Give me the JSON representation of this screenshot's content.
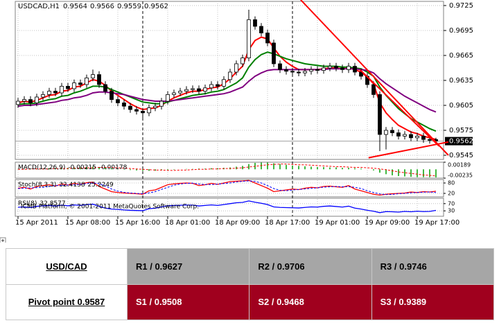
{
  "chart_data": {
    "type": "candlestick",
    "title": "USDCAD,H1",
    "ohlc": [
      [
        0.9606,
        0.9614,
        0.9602,
        0.961
      ],
      [
        0.961,
        0.9616,
        0.9606,
        0.9612
      ],
      [
        0.9612,
        0.9616,
        0.9604,
        0.9608
      ],
      [
        0.9608,
        0.9619,
        0.9604,
        0.9615
      ],
      [
        0.9615,
        0.9622,
        0.9611,
        0.9618
      ],
      [
        0.9618,
        0.9626,
        0.9614,
        0.9622
      ],
      [
        0.9622,
        0.9626,
        0.9616,
        0.962
      ],
      [
        0.962,
        0.9632,
        0.9616,
        0.9628
      ],
      [
        0.9628,
        0.9632,
        0.9621,
        0.9625
      ],
      [
        0.9625,
        0.9636,
        0.9621,
        0.9632
      ],
      [
        0.9632,
        0.9636,
        0.9626,
        0.963
      ],
      [
        0.963,
        0.9642,
        0.9626,
        0.9638
      ],
      [
        0.9638,
        0.9648,
        0.9634,
        0.9642
      ],
      [
        0.9642,
        0.9646,
        0.9626,
        0.963
      ],
      [
        0.963,
        0.9634,
        0.9618,
        0.9622
      ],
      [
        0.9622,
        0.9626,
        0.9608,
        0.9612
      ],
      [
        0.9612,
        0.9616,
        0.9604,
        0.9608
      ],
      [
        0.9608,
        0.9612,
        0.96,
        0.9604
      ],
      [
        0.9604,
        0.9608,
        0.9596,
        0.96
      ],
      [
        0.96,
        0.9604,
        0.9594,
        0.9598
      ],
      [
        0.9598,
        0.9602,
        0.959,
        0.9596
      ],
      [
        0.9596,
        0.9606,
        0.9592,
        0.9602
      ],
      [
        0.9602,
        0.9608,
        0.9598,
        0.9604
      ],
      [
        0.9604,
        0.9614,
        0.96,
        0.961
      ],
      [
        0.961,
        0.9622,
        0.9606,
        0.9618
      ],
      [
        0.9618,
        0.9624,
        0.9614,
        0.962
      ],
      [
        0.962,
        0.9626,
        0.9616,
        0.9622
      ],
      [
        0.9622,
        0.9628,
        0.9618,
        0.9624
      ],
      [
        0.9624,
        0.9629,
        0.962,
        0.9625
      ],
      [
        0.9625,
        0.9629,
        0.9618,
        0.9622
      ],
      [
        0.9622,
        0.963,
        0.9618,
        0.9626
      ],
      [
        0.9626,
        0.9634,
        0.9622,
        0.963
      ],
      [
        0.963,
        0.9634,
        0.9624,
        0.9628
      ],
      [
        0.9628,
        0.964,
        0.9624,
        0.9636
      ],
      [
        0.9636,
        0.9649,
        0.9632,
        0.9645
      ],
      [
        0.9645,
        0.9659,
        0.9641,
        0.9655
      ],
      [
        0.9655,
        0.9666,
        0.9651,
        0.9662
      ],
      [
        0.9662,
        0.972,
        0.9658,
        0.9708
      ],
      [
        0.9708,
        0.9712,
        0.9696,
        0.97
      ],
      [
        0.97,
        0.9704,
        0.9688,
        0.9692
      ],
      [
        0.9692,
        0.9696,
        0.9676,
        0.968
      ],
      [
        0.968,
        0.9684,
        0.9651,
        0.9655
      ],
      [
        0.9655,
        0.9659,
        0.9644,
        0.9648
      ],
      [
        0.9648,
        0.9652,
        0.9642,
        0.9646
      ],
      [
        0.9646,
        0.965,
        0.9641,
        0.9645
      ],
      [
        0.9645,
        0.9649,
        0.964,
        0.9644
      ],
      [
        0.9644,
        0.965,
        0.964,
        0.9646
      ],
      [
        0.9646,
        0.9652,
        0.9642,
        0.9648
      ],
      [
        0.9648,
        0.9652,
        0.9643,
        0.9647
      ],
      [
        0.9647,
        0.9654,
        0.9643,
        0.965
      ],
      [
        0.965,
        0.9656,
        0.9646,
        0.9652
      ],
      [
        0.9652,
        0.9656,
        0.9646,
        0.965
      ],
      [
        0.965,
        0.9654,
        0.9644,
        0.9648
      ],
      [
        0.9648,
        0.9656,
        0.9644,
        0.9652
      ],
      [
        0.9652,
        0.9656,
        0.9641,
        0.9645
      ],
      [
        0.9645,
        0.9649,
        0.9636,
        0.964
      ],
      [
        0.964,
        0.9644,
        0.9626,
        0.963
      ],
      [
        0.963,
        0.9634,
        0.9614,
        0.9618
      ],
      [
        0.9618,
        0.9622,
        0.955,
        0.957
      ],
      [
        0.957,
        0.9579,
        0.9552,
        0.9575
      ],
      [
        0.9575,
        0.9579,
        0.9568,
        0.9572
      ],
      [
        0.9572,
        0.9576,
        0.9564,
        0.9568
      ],
      [
        0.9568,
        0.9574,
        0.9564,
        0.957
      ],
      [
        0.957,
        0.9574,
        0.9562,
        0.9566
      ],
      [
        0.9566,
        0.9572,
        0.9562,
        0.9568
      ],
      [
        0.9568,
        0.9572,
        0.956,
        0.9564
      ],
      [
        0.9564,
        0.9568,
        0.9559,
        0.9563
      ],
      [
        0.9564,
        0.9566,
        0.9559,
        0.9562
      ]
    ],
    "color_up": "#ffffff",
    "color_down": "#000000",
    "ylim": [
      0.954,
      0.973
    ],
    "yticks": [
      0.9725,
      0.9695,
      0.9665,
      0.9635,
      0.9605,
      0.9575,
      0.9545
    ],
    "grid": true,
    "xticks": [
      {
        "value": 0,
        "label": "15 Apr 2011"
      },
      {
        "value": 8,
        "label": "15 Apr 08:00"
      },
      {
        "value": 16,
        "label": "15 Apr 16:00"
      },
      {
        "value": 24,
        "label": "18 Apr 01:00"
      },
      {
        "value": 32,
        "label": "18 Apr 09:00"
      },
      {
        "value": 40,
        "label": "18 Apr 17:00"
      },
      {
        "value": 48,
        "label": "19 Apr 01:00"
      },
      {
        "value": 56,
        "label": "19 Apr 09:00"
      },
      {
        "value": 64,
        "label": "19 Apr 17:00"
      }
    ],
    "period_separators": [
      20,
      44
    ],
    "series": [
      {
        "color": "#ff0000",
        "values": [
          0.9608,
          0.961,
          0.9609,
          0.9611,
          0.9614,
          0.9617,
          0.9618,
          0.9622,
          0.9623,
          0.9627,
          0.9628,
          0.9632,
          0.9636,
          0.9634,
          0.9629,
          0.9622,
          0.9617,
          0.9612,
          0.9607,
          0.9603,
          0.96,
          0.9601,
          0.9602,
          0.9605,
          0.961,
          0.9614,
          0.9617,
          0.962,
          0.9622,
          0.9622,
          0.9624,
          0.9626,
          0.9627,
          0.9631,
          0.9637,
          0.9645,
          0.9652,
          0.9672,
          0.9683,
          0.9687,
          0.9685,
          0.9674,
          0.9664,
          0.9657,
          0.9652,
          0.9648,
          0.9648,
          0.9648,
          0.9648,
          0.9649,
          0.965,
          0.965,
          0.9649,
          0.965,
          0.9648,
          0.9645,
          0.9639,
          0.9631,
          0.9608,
          0.9596,
          0.9588,
          0.9581,
          0.9577,
          0.9573,
          0.9571,
          0.9568,
          0.9566,
          0.9564
        ]
      },
      {
        "color": "#008000",
        "values": [
          0.9606,
          0.9607,
          0.9607,
          0.9608,
          0.961,
          0.9612,
          0.9613,
          0.9616,
          0.9617,
          0.962,
          0.9622,
          0.9625,
          0.9628,
          0.9628,
          0.9627,
          0.9624,
          0.9621,
          0.9618,
          0.9615,
          0.9612,
          0.9609,
          0.9608,
          0.9607,
          0.9607,
          0.9609,
          0.9611,
          0.9613,
          0.9615,
          0.9617,
          0.9618,
          0.9619,
          0.9621,
          0.9622,
          0.9624,
          0.9628,
          0.9632,
          0.9638,
          0.9651,
          0.966,
          0.9666,
          0.9669,
          0.9667,
          0.9664,
          0.9661,
          0.9659,
          0.9657,
          0.9655,
          0.9654,
          0.9653,
          0.9652,
          0.9652,
          0.9652,
          0.9651,
          0.9651,
          0.965,
          0.9649,
          0.9645,
          0.964,
          0.9627,
          0.9617,
          0.9609,
          0.9601,
          0.9595,
          0.9589,
          0.9585,
          0.9581,
          0.9577,
          0.9574
        ]
      },
      {
        "color": "#800080",
        "values": [
          0.9604,
          0.9605,
          0.9605,
          0.9606,
          0.9607,
          0.9608,
          0.9609,
          0.9611,
          0.9612,
          0.9614,
          0.9615,
          0.9617,
          0.962,
          0.9621,
          0.9621,
          0.962,
          0.9619,
          0.9618,
          0.9616,
          0.9614,
          0.9612,
          0.9611,
          0.961,
          0.961,
          0.961,
          0.9611,
          0.9612,
          0.9613,
          0.9614,
          0.9615,
          0.9616,
          0.9617,
          0.9618,
          0.9619,
          0.9621,
          0.9624,
          0.9627,
          0.9634,
          0.964,
          0.9644,
          0.9647,
          0.9648,
          0.9648,
          0.9648,
          0.9648,
          0.9648,
          0.9648,
          0.9648,
          0.9648,
          0.9648,
          0.9649,
          0.9649,
          0.9649,
          0.9649,
          0.9649,
          0.9648,
          0.9647,
          0.9644,
          0.9637,
          0.9631,
          0.9626,
          0.9621,
          0.9616,
          0.9612,
          0.9608,
          0.9604,
          0.96,
          0.9597
        ]
      }
    ],
    "trendlines": [
      {
        "color": "#ff0000",
        "x": [
          45.3,
          69
        ],
        "y": [
          0.9732,
          0.9545
        ]
      },
      {
        "color": "#ff0000",
        "x": [
          54.8,
          67.5
        ],
        "y": [
          0.9648,
          0.9556
        ]
      },
      {
        "color": "#ff0000",
        "x": [
          56.2,
          69
        ],
        "y": [
          0.9542,
          0.9561
        ]
      }
    ],
    "copyright": "ICMB Platform, © 2001-2011 MetaQuotes Software Corp.",
    "indicators": [
      {
        "type": "macd",
        "label": "MACD(12,26,9)",
        "ylim": [
          -0.00235,
          0.00189
        ],
        "yticks": [
          0.00189,
          -0.00235
        ],
        "histogram": {
          "color": "#00a000",
          "values": [
            0.0001,
            0.0001,
            0.0001,
            0.0002,
            0.0002,
            0.0003,
            0.0003,
            0.0004,
            0.0004,
            0.0005,
            0.0005,
            0.0006,
            0.0007,
            0.0006,
            0.0005,
            0.0003,
            0.0001,
            -0.0001,
            -0.0002,
            -0.0003,
            -0.0004,
            -0.0004,
            -0.0004,
            -0.0003,
            -0.0002,
            -0.0001,
            0,
            0.0001,
            0.0001,
            0.0002,
            0.0002,
            0.0003,
            0.0003,
            0.0004,
            0.0005,
            0.0007,
            0.0009,
            0.0014,
            0.0017,
            0.0018,
            0.0018,
            0.0016,
            0.0014,
            0.0012,
            0.001,
            0.0009,
            0.0008,
            0.0007,
            0.0006,
            0.0006,
            0.0005,
            0.0005,
            0.0004,
            0.0004,
            0.0003,
            0.0002,
            0,
            -0.0003,
            -0.0009,
            -0.0013,
            -0.0016,
            -0.0018,
            -0.0019,
            -0.002,
            -0.0021,
            -0.0021,
            -0.0021,
            -0.00215
          ]
        },
        "signal": {
          "color": "#ff0000",
          "values": [
            0,
            0,
            0.0001,
            0.0001,
            0.0001,
            0.0001,
            0.0002,
            0.0002,
            0.0002,
            0.0003,
            0.0003,
            0.0004,
            0.0004,
            0.0005,
            0.0005,
            0.0005,
            0.0004,
            0.0003,
            0.0002,
            0.0001,
            0,
            -0.0001,
            -0.0002,
            -0.0002,
            -0.0003,
            -0.0003,
            -0.0002,
            -0.0002,
            -0.0001,
            0,
            0,
            0.0001,
            0.0001,
            0.0002,
            0.0002,
            0.0003,
            0.0004,
            0.0006,
            0.0008,
            0.001,
            0.0012,
            0.0013,
            0.0014,
            0.0014,
            0.0013,
            0.0012,
            0.0012,
            0.0011,
            0.001,
            0.0009,
            0.0008,
            0.0007,
            0.0007,
            0.0006,
            0.0005,
            0.0005,
            0.0004,
            0.0003,
            0.0001,
            -0.0001,
            -0.0004,
            -0.0007,
            -0.0009,
            -0.0011,
            -0.0013,
            -0.0015,
            -0.0016,
            -0.00178
          ]
        }
      },
      {
        "type": "stoch",
        "label": "Stoch(8,3,3)",
        "ylim": [
          0,
          100
        ],
        "yticks": [
          80,
          20
        ],
        "histogram": null,
        "main": {
          "color": "#ff0000",
          "values": [
            50,
            55,
            45,
            60,
            65,
            70,
            62,
            75,
            68,
            78,
            72,
            82,
            85,
            60,
            45,
            30,
            25,
            22,
            20,
            18,
            15,
            35,
            40,
            55,
            70,
            75,
            78,
            80,
            78,
            65,
            70,
            78,
            72,
            80,
            88,
            90,
            92,
            95,
            80,
            65,
            50,
            30,
            35,
            40,
            45,
            42,
            50,
            55,
            52,
            60,
            62,
            58,
            55,
            65,
            45,
            35,
            25,
            15,
            10,
            15,
            18,
            20,
            22,
            28,
            25,
            30,
            28,
            32.4138
          ]
        },
        "signal": {
          "color": "#0000ff",
          "values": [
            48,
            50,
            52,
            53,
            55,
            60,
            65,
            66,
            68,
            70,
            72,
            76,
            80,
            76,
            63,
            45,
            33,
            26,
            22,
            20,
            18,
            23,
            30,
            43,
            55,
            67,
            74,
            78,
            79,
            74,
            71,
            71,
            73,
            77,
            80,
            86,
            90,
            92,
            89,
            80,
            65,
            48,
            38,
            35,
            40,
            42,
            46,
            49,
            52,
            56,
            58,
            60,
            58,
            59,
            55,
            48,
            35,
            25,
            17,
            13,
            14,
            18,
            20,
            23,
            25,
            27,
            28,
            25.2249
          ]
        }
      },
      {
        "type": "rsi",
        "label": "RSI(8)",
        "ylim": [
          0,
          100
        ],
        "yticks": [
          70,
          30
        ],
        "main": {
          "color": "#0000ff",
          "values": [
            50,
            52,
            48,
            55,
            58,
            60,
            56,
            62,
            58,
            63,
            60,
            65,
            67,
            55,
            45,
            40,
            38,
            35,
            33,
            32,
            31,
            42,
            45,
            52,
            58,
            60,
            61,
            62,
            62,
            57,
            60,
            63,
            60,
            65,
            70,
            75,
            77,
            85,
            78,
            72,
            65,
            52,
            49,
            48,
            47,
            46,
            49,
            52,
            51,
            55,
            57,
            54,
            51,
            56,
            45,
            40,
            33,
            28,
            20,
            26,
            25,
            23,
            27,
            25,
            28,
            26,
            27,
            32.8577
          ]
        }
      }
    ]
  },
  "table": {
    "pair": "USD/CAD",
    "pivot": "Pivot point 0.9587",
    "rows": [
      [
        "R1 / 0.9627",
        "R2 / 0.9706",
        "R3 / 0.9746"
      ],
      [
        "S1 / 0.9508",
        "S2 / 0.9468",
        "S3 / 0.9389"
      ]
    ]
  }
}
